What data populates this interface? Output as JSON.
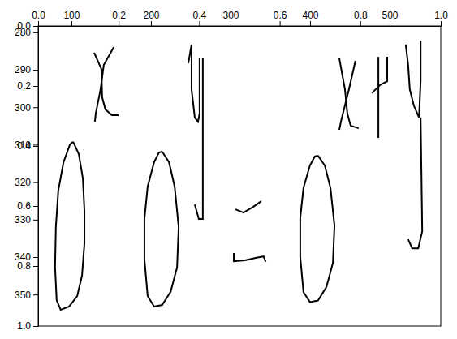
{
  "chart_data": [
    {
      "type": "line",
      "xlim": [
        0,
        1
      ],
      "ylim": [
        1,
        0
      ],
      "xticks": [
        {
          "value": 0,
          "label": "0.0"
        },
        {
          "value": 0.2,
          "label": "0.2"
        },
        {
          "value": 0.4,
          "label": "0.4"
        },
        {
          "value": 0.6,
          "label": "0.6"
        },
        {
          "value": 0.8,
          "label": "0.8"
        },
        {
          "value": 1,
          "label": "1.0"
        }
      ],
      "yticks": [
        {
          "value": 0,
          "label": "0.0"
        },
        {
          "value": 0.2,
          "label": "0.2"
        },
        {
          "value": 0.4,
          "label": "0.4"
        },
        {
          "value": 0.6,
          "label": "0.6"
        },
        {
          "value": 0.8,
          "label": "0.8"
        },
        {
          "value": 1,
          "label": "1.0"
        }
      ],
      "color": "#000000",
      "series": [
        {
          "x": [
            0.087,
            0.101,
            0.111,
            0.115,
            0.115,
            0.109,
            0.097,
            0.077,
            0.056,
            0.046,
            0.042,
            0.044,
            0.05,
            0.063,
            0.079,
            0.087
          ],
          "values": [
            0.386,
            0.427,
            0.508,
            0.616,
            0.724,
            0.832,
            0.9,
            0.935,
            0.946,
            0.914,
            0.805,
            0.67,
            0.549,
            0.454,
            0.395,
            0.386
          ]
        },
        {
          "x": [
            0.308,
            0.325,
            0.339,
            0.349,
            0.345,
            0.329,
            0.308,
            0.288,
            0.272,
            0.264,
            0.264,
            0.272,
            0.288,
            0.3,
            0.308
          ],
          "values": [
            0.419,
            0.454,
            0.535,
            0.67,
            0.805,
            0.886,
            0.93,
            0.935,
            0.9,
            0.778,
            0.643,
            0.535,
            0.454,
            0.422,
            0.419
          ]
        },
        {
          "x": [
            0.695,
            0.712,
            0.726,
            0.736,
            0.732,
            0.716,
            0.695,
            0.675,
            0.659,
            0.651,
            0.651,
            0.659,
            0.675,
            0.687,
            0.695
          ],
          "values": [
            0.432,
            0.465,
            0.54,
            0.665,
            0.79,
            0.87,
            0.915,
            0.92,
            0.887,
            0.77,
            0.64,
            0.54,
            0.465,
            0.435,
            0.432
          ]
        },
        {
          "x": [
            0.139,
            0.157,
            0.159,
            0.167,
            0.183,
            0.2
          ],
          "values": [
            0.089,
            0.143,
            0.238,
            0.278,
            0.297,
            0.297
          ]
        },
        {
          "x": [
            0.188,
            0.163,
            0.155,
            0.143,
            0.141
          ],
          "values": [
            0.07,
            0.13,
            0.211,
            0.292,
            0.319
          ]
        },
        {
          "x": [
            0.373,
            0.381,
            0.381,
            0.389,
            0.397,
            0.401,
            0.401
          ],
          "values": [
            0.124,
            0.062,
            0.211,
            0.305,
            0.319,
            0.292,
            0.108
          ]
        },
        {
          "x": [
            0.409,
            0.409,
            0.399,
            0.389
          ],
          "values": [
            0.108,
            0.643,
            0.643,
            0.595
          ]
        },
        {
          "x": [
            0.748,
            0.762,
            0.768,
            0.776,
            0.796
          ],
          "values": [
            0.108,
            0.211,
            0.292,
            0.332,
            0.341
          ]
        },
        {
          "x": [
            0.788,
            0.772,
            0.752,
            0.748
          ],
          "values": [
            0.116,
            0.211,
            0.319,
            0.346
          ]
        },
        {
          "x": [
            0.845,
            0.845
          ],
          "values": [
            0.103,
            0.373
          ]
        },
        {
          "x": [
            0.829,
            0.849,
            0.867,
            0.867
          ],
          "values": [
            0.224,
            0.197,
            0.184,
            0.103
          ]
        },
        {
          "x": [
            0.913,
            0.919,
            0.923,
            0.933,
            0.946,
            0.95,
            0.95
          ],
          "values": [
            0.062,
            0.13,
            0.211,
            0.265,
            0.305,
            0.184,
            0.049
          ]
        },
        {
          "x": [
            0.95,
            0.954,
            0.944,
            0.929,
            0.919
          ],
          "values": [
            0.305,
            0.684,
            0.741,
            0.741,
            0.711
          ]
        },
        {
          "x": [
            0.49,
            0.51,
            0.534,
            0.554
          ],
          "values": [
            0.611,
            0.622,
            0.603,
            0.584
          ]
        },
        {
          "x": [
            0.486,
            0.486,
            0.514,
            0.54,
            0.56,
            0.565
          ],
          "values": [
            0.757,
            0.784,
            0.781,
            0.773,
            0.768,
            0.786
          ]
        }
      ]
    },
    {
      "type": "line",
      "xlim": [
        58.2,
        564.3
      ],
      "ylim": [
        358.4,
        278.3
      ],
      "xticks": [
        100,
        200,
        300,
        400,
        500
      ],
      "yticks": [
        280,
        290,
        300,
        310,
        320,
        330,
        340,
        350
      ],
      "series": []
    }
  ]
}
